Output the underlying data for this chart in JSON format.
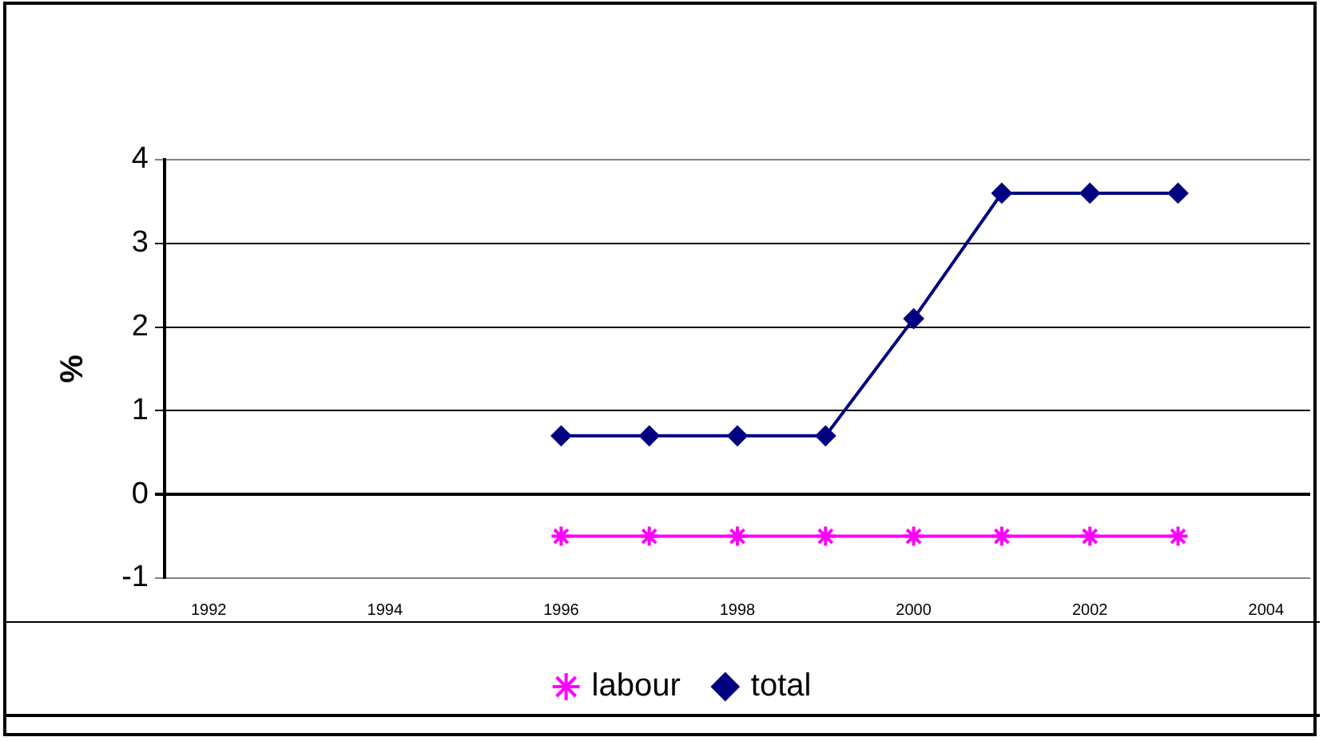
{
  "chart_data": {
    "type": "line",
    "ylabel": "%",
    "x": [
      1996,
      1997,
      1998,
      1999,
      2000,
      2001,
      2002,
      2003
    ],
    "series": [
      {
        "name": "labour",
        "color": "#ff00ff",
        "marker": "cross",
        "values": [
          -0.5,
          -0.5,
          -0.5,
          -0.5,
          -0.5,
          -0.5,
          -0.5,
          -0.5
        ]
      },
      {
        "name": "total",
        "color": "#000080",
        "marker": "diamond",
        "values": [
          0.7,
          0.7,
          0.7,
          0.7,
          2.1,
          3.6,
          3.6,
          3.6
        ]
      }
    ],
    "xlim": [
      1991.5,
      2004.5
    ],
    "xticks": [
      1992,
      1994,
      1996,
      1998,
      2000,
      2002,
      2004
    ],
    "ylim": [
      -1,
      4
    ],
    "yticks": [
      -1,
      0,
      1,
      2,
      3,
      4
    ],
    "grid": "y",
    "legend": "bottom"
  }
}
